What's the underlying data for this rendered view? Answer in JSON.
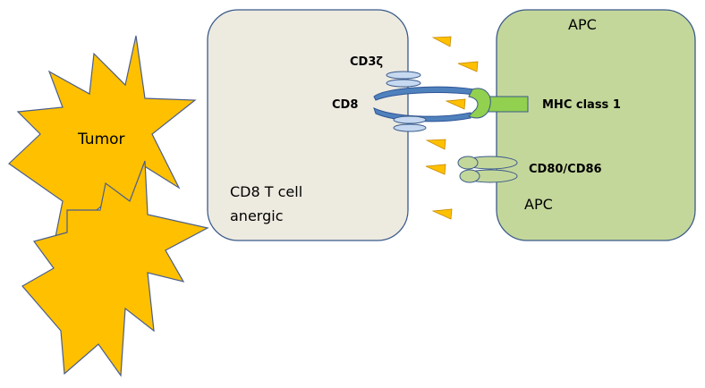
{
  "tumor": {
    "label": "Tumor",
    "color": "#FFC000",
    "edge": "#4A5E8C"
  },
  "t_cell": {
    "line1": "CD8 T cell",
    "line2": "anergic",
    "fill": "#EDEAE0",
    "edge": "#3A5A8A"
  },
  "apc": {
    "top_label": "APC",
    "bottom_label": "APC",
    "fill": "#C4D79B",
    "edge": "#3A5A8A"
  },
  "molecules": {
    "cd3z": "CD3ζ",
    "cd8": "CD8",
    "mhc": "MHC class 1",
    "cd80": "CD80/CD86"
  },
  "colors": {
    "cd8_blue": "#4F81BD",
    "cd3_light": "#C6D9F1",
    "mhc_green": "#92D050",
    "cytokine": "#FFC000",
    "costim": "#C4D79B"
  }
}
